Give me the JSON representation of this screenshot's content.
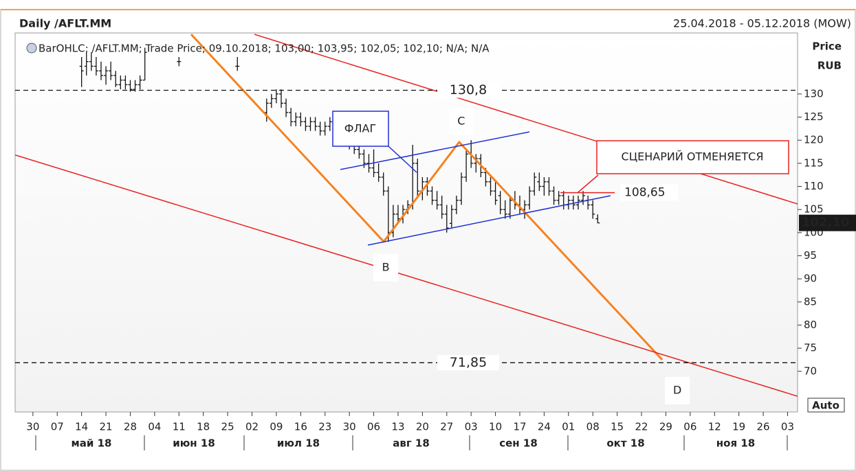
{
  "chart_data": {
    "type": "ohlc",
    "title": "Daily /AFLT.MM",
    "subtitle": "25.04.2018 - 05.12.2018 (MOW)",
    "legend_text": "BarOHLC; /AFLT.MM; Trade Price; 09.10.2018; 103,00; 103,95; 102,05; 102,10; N/A; N/A",
    "ylabel": "Price",
    "yunit": "RUB",
    "scale_button": "Auto",
    "color": "#111111",
    "xlim": [
      -0.73,
      31.41
    ],
    "ylim": [
      61.2,
      143.2
    ],
    "xticks": [
      {
        "value": 0,
        "label": "30"
      },
      {
        "value": 1,
        "label": "07"
      },
      {
        "value": 2,
        "label": "14"
      },
      {
        "value": 3,
        "label": "21"
      },
      {
        "value": 4,
        "label": "28"
      },
      {
        "value": 5,
        "label": "04"
      },
      {
        "value": 6,
        "label": "11"
      },
      {
        "value": 7,
        "label": "18"
      },
      {
        "value": 8,
        "label": "25"
      },
      {
        "value": 9,
        "label": "02"
      },
      {
        "value": 10,
        "label": "09"
      },
      {
        "value": 11,
        "label": "16"
      },
      {
        "value": 12,
        "label": "23"
      },
      {
        "value": 13,
        "label": "30"
      },
      {
        "value": 14,
        "label": "06"
      },
      {
        "value": 15,
        "label": "13"
      },
      {
        "value": 16,
        "label": "20"
      },
      {
        "value": 17,
        "label": "27"
      },
      {
        "value": 18,
        "label": "03"
      },
      {
        "value": 19,
        "label": "10"
      },
      {
        "value": 20,
        "label": "17"
      },
      {
        "value": 21,
        "label": "24"
      },
      {
        "value": 22,
        "label": "01"
      },
      {
        "value": 23,
        "label": "08"
      },
      {
        "value": 24,
        "label": "15"
      },
      {
        "value": 25,
        "label": "22"
      },
      {
        "value": 26,
        "label": "29"
      },
      {
        "value": 27,
        "label": "06"
      },
      {
        "value": 28,
        "label": "12"
      },
      {
        "value": 29,
        "label": "19"
      },
      {
        "value": 30,
        "label": "26"
      },
      {
        "value": 31,
        "label": "03"
      }
    ],
    "yticks": [
      70,
      75,
      80,
      85,
      90,
      95,
      100,
      105,
      110,
      115,
      120,
      125,
      130
    ],
    "months": [
      "май 18",
      "июн 18",
      "июл 18",
      "авг 18",
      "сен 18",
      "окт 18",
      "ноя 18"
    ],
    "x": [
      2.0,
      2.2,
      2.4,
      2.6,
      2.8,
      3.0,
      3.2,
      3.4,
      3.6,
      3.8,
      4.0,
      4.2,
      4.4,
      4.6,
      6.0,
      8.4,
      9.6,
      9.8,
      10.0,
      10.2,
      10.4,
      10.6,
      10.8,
      11.0,
      11.2,
      11.4,
      11.6,
      11.8,
      12.0,
      12.2,
      12.4,
      12.6,
      12.8,
      13.0,
      13.2,
      13.4,
      13.6,
      13.8,
      14.0,
      14.2,
      14.4,
      14.6,
      14.8,
      15.0,
      15.2,
      15.4,
      15.6,
      15.8,
      16.0,
      16.2,
      16.4,
      16.6,
      16.8,
      17.0,
      17.2,
      17.4,
      17.6,
      17.8,
      18.0,
      18.2,
      18.4,
      18.6,
      18.8,
      19.0,
      19.2,
      19.4,
      19.6,
      19.8,
      20.0,
      20.2,
      20.4,
      20.6,
      20.8,
      21.0,
      21.2,
      21.4,
      21.6,
      21.8,
      22.0,
      22.2,
      22.4,
      22.6,
      22.8,
      23.0,
      23.2
    ],
    "open": [
      136,
      136,
      137,
      136,
      135,
      134,
      135,
      134,
      132,
      133,
      132,
      131,
      132,
      133,
      137,
      136,
      126,
      128,
      129,
      130,
      128,
      126,
      124,
      125,
      124,
      123,
      124,
      123,
      122,
      123,
      124,
      122,
      121,
      120,
      119,
      118,
      117,
      115,
      114,
      113,
      112,
      109,
      100,
      104,
      103,
      105,
      106,
      115,
      109,
      111,
      109,
      107,
      106,
      104,
      102,
      105,
      107,
      112,
      117,
      115,
      116,
      113,
      111,
      109,
      108,
      105,
      104,
      107,
      106,
      105,
      106,
      109,
      111,
      110,
      111,
      109,
      107,
      108,
      106,
      107,
      106,
      107,
      107,
      106,
      103
    ],
    "high": [
      138,
      139,
      139,
      138,
      137,
      136,
      137,
      135,
      134,
      134,
      133,
      133,
      134,
      140,
      138,
      138,
      129,
      130,
      131,
      131,
      129,
      127,
      126,
      126,
      125,
      125,
      125,
      124,
      124,
      125,
      125,
      123,
      122,
      121,
      120,
      119,
      118,
      117,
      118,
      115,
      113,
      110,
      106,
      106,
      106,
      107,
      119,
      116,
      112,
      112,
      110,
      109,
      108,
      106,
      106,
      108,
      113,
      118,
      120,
      117,
      117,
      114,
      112,
      111,
      109,
      107,
      108,
      109,
      108,
      107,
      110,
      113,
      113,
      112,
      112,
      110,
      109,
      109,
      108,
      108,
      108,
      109,
      108,
      107,
      103.95
    ],
    "low": [
      131.5,
      134,
      135,
      134,
      133,
      132,
      133,
      131.5,
      131,
      131,
      130.5,
      130.5,
      131,
      133,
      136,
      135,
      124,
      127,
      128,
      127,
      125,
      123,
      123,
      123,
      122,
      122,
      122,
      121,
      121,
      122,
      121,
      120,
      119,
      118,
      117,
      116,
      114,
      113,
      112,
      111,
      108,
      98,
      99,
      102,
      102,
      104,
      105,
      108,
      107,
      108,
      106,
      105,
      103,
      100,
      101,
      104,
      106,
      111,
      114,
      113,
      112,
      110,
      108,
      106,
      104,
      103,
      103,
      105,
      104,
      103,
      105,
      108,
      109,
      108,
      108,
      106,
      106,
      105,
      105,
      105,
      105,
      106,
      105,
      103,
      102.05
    ],
    "close": [
      135,
      137,
      136,
      135,
      134,
      135,
      134,
      132,
      133,
      132,
      131,
      132,
      133,
      139,
      137,
      136,
      128,
      129,
      130,
      128,
      126,
      124,
      125,
      124,
      123,
      124,
      123,
      122,
      123,
      124,
      122,
      121,
      120,
      119,
      118,
      117,
      115,
      114,
      113,
      112,
      109,
      100,
      104,
      103,
      105,
      106,
      115,
      109,
      111,
      109,
      107,
      106,
      104,
      101,
      105,
      107,
      112,
      117,
      115,
      116,
      113,
      111,
      109,
      107,
      105,
      104,
      107,
      106,
      105,
      106,
      109,
      112,
      110,
      111,
      109,
      107,
      108,
      106,
      107,
      106,
      107,
      108,
      106,
      104,
      102.1
    ],
    "last_price": 102.1,
    "last_price_label": "102,10",
    "levels": [
      {
        "value": 130.8,
        "label": "130,8"
      },
      {
        "value": 71.85,
        "label": "71,85"
      }
    ],
    "trendlines": [
      {
        "color": "#f58220",
        "x": [
          6.5,
          14.41,
          17.51,
          25.85
        ],
        "y": [
          142.9,
          98.05,
          119.6,
          72.5
        ],
        "point_labels": [
          null,
          "B",
          "C",
          "D"
        ]
      },
      {
        "color": "#1f2fd1",
        "x": [
          12.63,
          20.4
        ],
        "y": [
          113.65,
          121.8
        ]
      },
      {
        "color": "#1f2fd1",
        "x": [
          13.76,
          23.73
        ],
        "y": [
          97.3,
          108.0
        ]
      },
      {
        "color": "#e8201e",
        "x": [
          9.1,
          31.41
        ],
        "y": [
          142.9,
          106.2
        ]
      },
      {
        "color": "#e8201e",
        "x": [
          -0.73,
          31.41
        ],
        "y": [
          116.8,
          64.6
        ]
      }
    ],
    "stop_level": {
      "value": 108.65,
      "label": "108,65",
      "x": [
        21.67,
        23.9
      ]
    },
    "callouts": [
      "ФЛАГ",
      "СЦЕНАРИЙ ОТМЕНЯЕТСЯ"
    ]
  }
}
